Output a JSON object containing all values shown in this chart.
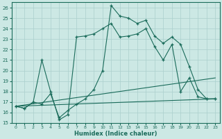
{
  "xlabel": "Humidex (Indice chaleur)",
  "bg_color": "#cce8e4",
  "grid_color": "#aacfcc",
  "line_color": "#1a6b5a",
  "ylim": [
    15,
    26.5
  ],
  "xlim": [
    -0.5,
    23.5
  ],
  "yticks": [
    15,
    16,
    17,
    18,
    19,
    20,
    21,
    22,
    23,
    24,
    25,
    26
  ],
  "xticks": [
    0,
    1,
    2,
    3,
    4,
    5,
    6,
    7,
    8,
    9,
    10,
    11,
    12,
    13,
    14,
    15,
    16,
    17,
    18,
    19,
    20,
    21,
    22,
    23
  ],
  "series": [
    {
      "x": [
        0,
        1,
        2,
        3,
        4,
        5,
        6,
        7,
        8,
        9,
        10,
        11,
        12,
        13,
        14,
        15,
        16,
        17,
        18,
        19,
        20,
        21,
        22,
        23
      ],
      "y": [
        16.6,
        16.4,
        17.0,
        16.8,
        17.8,
        15.5,
        16.2,
        16.8,
        17.3,
        18.2,
        20.0,
        26.2,
        25.2,
        25.0,
        24.5,
        24.8,
        23.3,
        22.6,
        23.2,
        22.5,
        20.4,
        18.2,
        17.3,
        17.3
      ],
      "has_marker": true
    },
    {
      "x": [
        0,
        1,
        2,
        3,
        4,
        5,
        6,
        7,
        8,
        9,
        10,
        11,
        12,
        13,
        14,
        15,
        16,
        17,
        18,
        19,
        20,
        21,
        22,
        23
      ],
      "y": [
        16.6,
        16.4,
        17.0,
        21.0,
        18.0,
        15.3,
        15.8,
        23.2,
        23.3,
        23.5,
        24.0,
        24.5,
        23.2,
        23.3,
        23.5,
        24.0,
        22.3,
        21.0,
        22.5,
        18.0,
        19.3,
        17.5,
        17.3,
        17.3
      ],
      "has_marker": true
    },
    {
      "x": [
        0,
        23
      ],
      "y": [
        16.6,
        19.3
      ],
      "has_marker": false
    },
    {
      "x": [
        0,
        23
      ],
      "y": [
        16.6,
        17.3
      ],
      "has_marker": false
    }
  ]
}
